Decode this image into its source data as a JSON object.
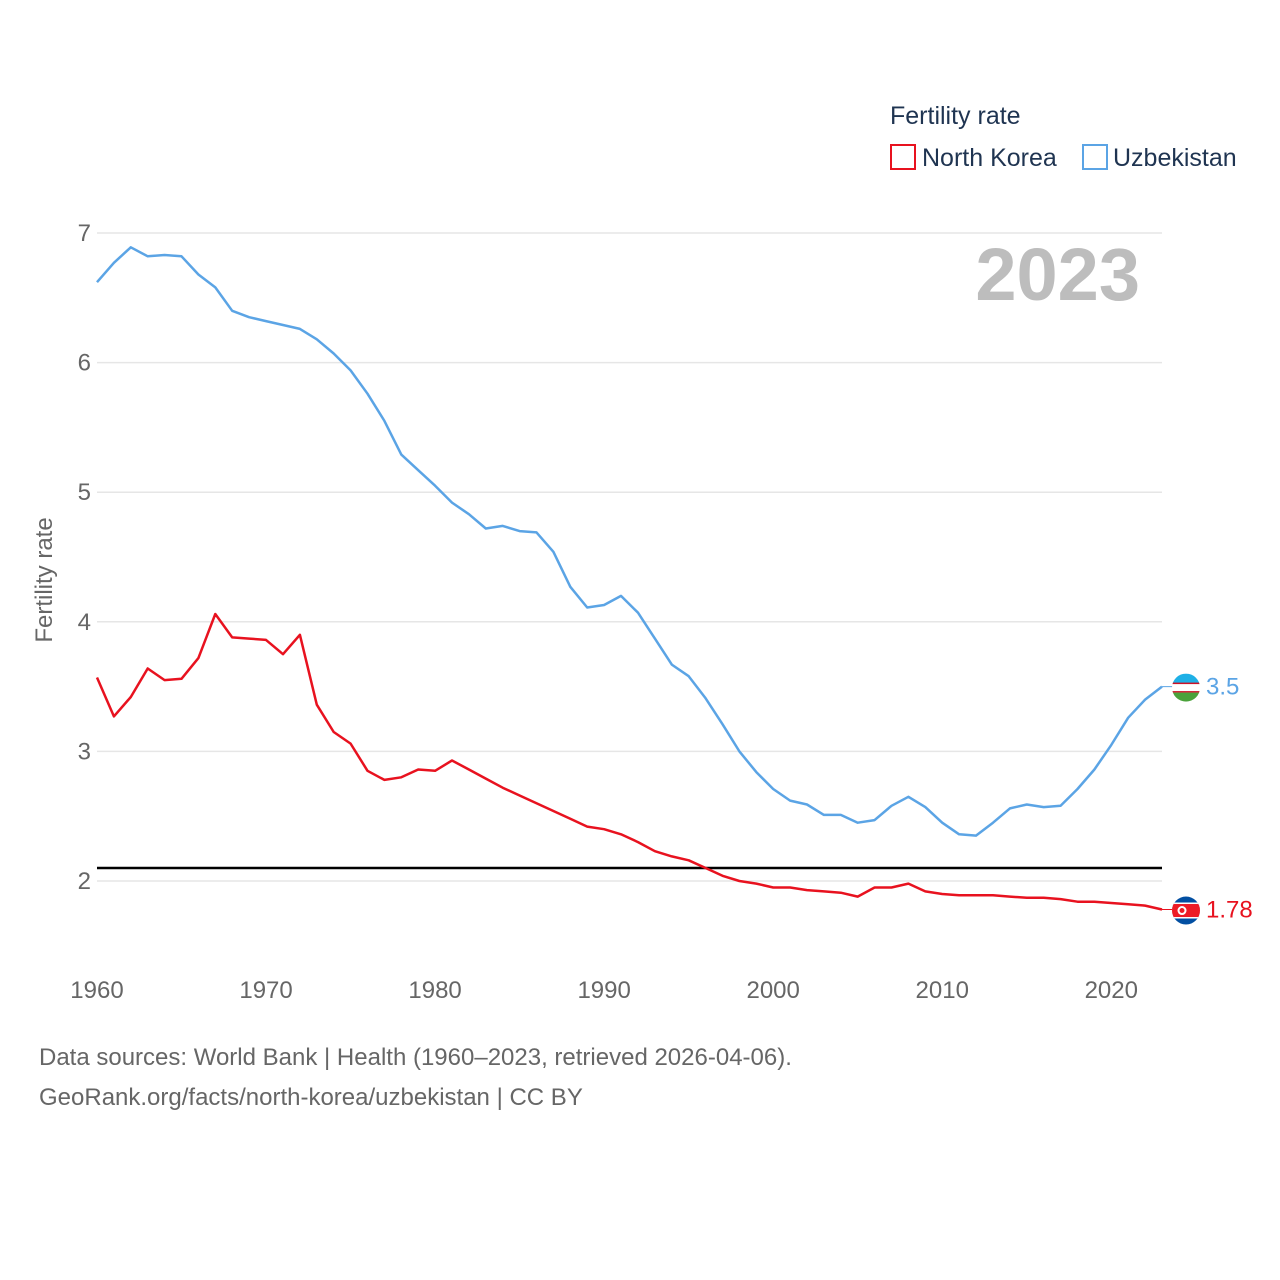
{
  "chart_data": {
    "type": "line",
    "title": "",
    "ylabel": "Fertility rate",
    "xlabel": "",
    "xlim": [
      1960,
      2023
    ],
    "ylim": [
      1.5,
      7
    ],
    "yticks": [
      2,
      3,
      4,
      5,
      6,
      7
    ],
    "xticks": [
      1960,
      1970,
      1980,
      1990,
      2000,
      2010,
      2020
    ],
    "grid": true,
    "legend_title": "Fertility rate",
    "legend_position": "top-right",
    "year_stamp": "2023",
    "reference_line": 2.1,
    "x": [
      1960,
      1961,
      1962,
      1963,
      1964,
      1965,
      1966,
      1967,
      1968,
      1969,
      1970,
      1971,
      1972,
      1973,
      1974,
      1975,
      1976,
      1977,
      1978,
      1979,
      1980,
      1981,
      1982,
      1983,
      1984,
      1985,
      1986,
      1987,
      1988,
      1989,
      1990,
      1991,
      1992,
      1993,
      1994,
      1995,
      1996,
      1997,
      1998,
      1999,
      2000,
      2001,
      2002,
      2003,
      2004,
      2005,
      2006,
      2007,
      2008,
      2009,
      2010,
      2011,
      2012,
      2013,
      2014,
      2015,
      2016,
      2017,
      2018,
      2019,
      2020,
      2021,
      2022,
      2023
    ],
    "series": [
      {
        "name": "North Korea",
        "color": "#e8121f",
        "end_label": "1.78",
        "values": [
          3.57,
          3.27,
          3.42,
          3.64,
          3.55,
          3.56,
          3.72,
          4.06,
          3.88,
          3.87,
          3.86,
          3.75,
          3.9,
          3.36,
          3.15,
          3.06,
          2.85,
          2.78,
          2.8,
          2.86,
          2.85,
          2.93,
          2.86,
          2.79,
          2.72,
          2.66,
          2.6,
          2.54,
          2.48,
          2.42,
          2.4,
          2.36,
          2.3,
          2.23,
          2.19,
          2.16,
          2.1,
          2.04,
          2.0,
          1.98,
          1.95,
          1.95,
          1.93,
          1.92,
          1.91,
          1.88,
          1.95,
          1.95,
          1.98,
          1.92,
          1.9,
          1.89,
          1.89,
          1.89,
          1.88,
          1.87,
          1.87,
          1.86,
          1.84,
          1.84,
          1.83,
          1.82,
          1.81,
          1.78
        ]
      },
      {
        "name": "Uzbekistan",
        "color": "#5ba4e5",
        "end_label": "3.5",
        "values": [
          6.62,
          6.77,
          6.89,
          6.82,
          6.83,
          6.82,
          6.68,
          6.58,
          6.4,
          6.35,
          6.32,
          6.29,
          6.26,
          6.18,
          6.07,
          5.94,
          5.76,
          5.55,
          5.29,
          5.17,
          5.05,
          4.92,
          4.83,
          4.72,
          4.74,
          4.7,
          4.69,
          4.54,
          4.27,
          4.11,
          4.13,
          4.2,
          4.07,
          3.87,
          3.67,
          3.58,
          3.41,
          3.21,
          3.0,
          2.84,
          2.71,
          2.62,
          2.59,
          2.51,
          2.51,
          2.45,
          2.47,
          2.58,
          2.65,
          2.57,
          2.45,
          2.36,
          2.35,
          2.45,
          2.56,
          2.59,
          2.57,
          2.58,
          2.71,
          2.86,
          3.05,
          3.26,
          3.4,
          3.5
        ]
      }
    ]
  },
  "footer": {
    "line1": "Data sources: World Bank | Health (1960–2023, retrieved 2026-04-06).",
    "line2": "GeoRank.org/facts/north-korea/uzbekistan | CC BY"
  }
}
